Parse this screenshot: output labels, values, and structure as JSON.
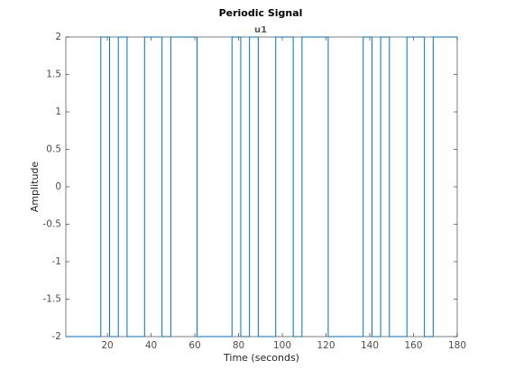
{
  "chart_data": {
    "type": "stairs",
    "title": "Periodic Signal",
    "subtitle": "u1",
    "xlabel": "Time (seconds)",
    "ylabel": "Amplitude",
    "x": [
      1,
      17,
      21,
      25,
      29,
      37,
      45,
      49,
      61,
      77,
      81,
      85,
      89,
      97,
      105,
      109,
      121,
      137,
      141,
      145,
      149,
      157,
      165,
      169,
      180
    ],
    "values": [
      -2,
      2,
      -2,
      2,
      -2,
      2,
      -2,
      2,
      -2,
      2,
      -2,
      2,
      -2,
      2,
      -2,
      2,
      -2,
      2,
      -2,
      2,
      -2,
      2,
      -2,
      2,
      2
    ],
    "color": "#0072bd",
    "xlim": [
      1,
      180
    ],
    "xticks": [
      20,
      40,
      60,
      80,
      100,
      120,
      140,
      160,
      180
    ],
    "ylim": [
      -2,
      2
    ],
    "yticks": [
      -2,
      -1.5,
      -1,
      -0.5,
      0,
      0.5,
      1,
      1.5,
      2
    ]
  }
}
